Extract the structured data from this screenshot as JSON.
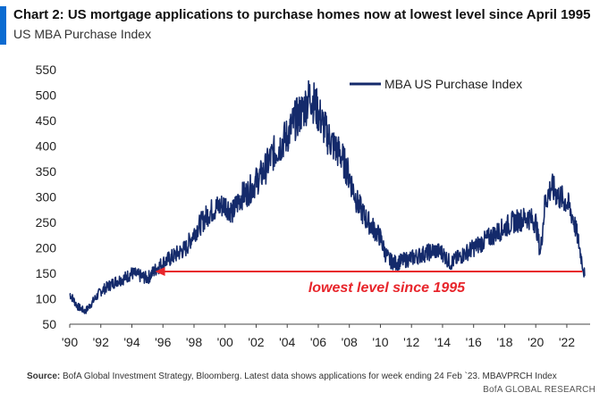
{
  "header": {
    "title": "Chart 2: US mortgage applications to purchase homes now at lowest level since April 1995",
    "subtitle": "US MBA Purchase Index"
  },
  "footer": {
    "source_label": "Source:",
    "source_text": " BofA Global Investment Strategy, Bloomberg. Latest data shows applications  for week ending 24 Feb `23. MBAVPRCH Index",
    "brand": "BofA GLOBAL RESEARCH"
  },
  "colors": {
    "accent": "#0b6bd1",
    "series": "#142a6b",
    "annotation": "#e8262c"
  },
  "chart_data": {
    "type": "line",
    "title": "",
    "xlabel": "",
    "ylabel": "",
    "ylim": [
      50,
      550
    ],
    "xlim": [
      1990,
      2023.5
    ],
    "grid": false,
    "legend_position": "top-right",
    "y_ticks": [
      "50",
      "100",
      "150",
      "200",
      "250",
      "300",
      "350",
      "400",
      "450",
      "500",
      "550"
    ],
    "x_ticks": [
      "'90",
      "'92",
      "'94",
      "'96",
      "'98",
      "'00",
      "'02",
      "'04",
      "'06",
      "'08",
      "'10",
      "'12",
      "'14",
      "'16",
      "'18",
      "'20",
      "'22"
    ],
    "series": [
      {
        "name": "MBA US Purchase Index",
        "x": [
          1990.0,
          1990.5,
          1991.0,
          1991.5,
          1992.0,
          1992.5,
          1993.0,
          1993.5,
          1994.0,
          1994.5,
          1995.0,
          1995.3,
          1995.6,
          1996.0,
          1996.5,
          1997.0,
          1997.5,
          1998.0,
          1998.5,
          1999.0,
          1999.5,
          2000.0,
          2000.5,
          2001.0,
          2001.5,
          2002.0,
          2002.5,
          2003.0,
          2003.5,
          2004.0,
          2004.5,
          2005.0,
          2005.5,
          2005.8,
          2006.2,
          2006.6,
          2007.0,
          2007.5,
          2008.0,
          2008.5,
          2009.0,
          2009.5,
          2010.0,
          2010.3,
          2010.6,
          2011.0,
          2011.5,
          2012.0,
          2012.5,
          2013.0,
          2013.5,
          2014.0,
          2014.5,
          2015.0,
          2015.5,
          2016.0,
          2016.5,
          2017.0,
          2017.5,
          2018.0,
          2018.5,
          2019.0,
          2019.5,
          2020.0,
          2020.3,
          2020.6,
          2021.0,
          2021.5,
          2022.0,
          2022.4,
          2022.7,
          2023.0,
          2023.15
        ],
        "y": [
          110,
          85,
          75,
          95,
          115,
          125,
          135,
          140,
          150,
          145,
          140,
          150,
          160,
          170,
          180,
          190,
          200,
          230,
          250,
          270,
          280,
          285,
          270,
          300,
          310,
          330,
          350,
          380,
          400,
          420,
          450,
          470,
          500,
          480,
          450,
          420,
          400,
          380,
          340,
          290,
          260,
          240,
          220,
          190,
          175,
          170,
          175,
          180,
          185,
          190,
          195,
          190,
          170,
          180,
          190,
          200,
          210,
          220,
          230,
          240,
          250,
          255,
          260,
          250,
          190,
          290,
          320,
          300,
          290,
          260,
          220,
          170,
          145
        ]
      }
    ],
    "annotations": [
      {
        "text": "lowest level since 1995",
        "arrow_from": [
          2023.0,
          150
        ],
        "arrow_to": [
          1995.5,
          150
        ]
      }
    ]
  }
}
